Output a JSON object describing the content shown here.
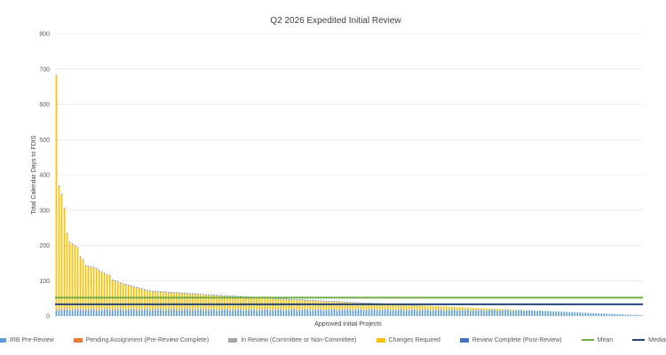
{
  "chart_data": {
    "type": "bar",
    "stacked": true,
    "title": "Q2 2026 Expedited Initial Review",
    "xlabel": "Approved Initial Projects",
    "ylabel": "Total Calendar Days to FDIS",
    "ylim": [
      0,
      800
    ],
    "yticks": [
      "0",
      "100",
      "200",
      "300",
      "400",
      "500",
      "600",
      "700",
      "800"
    ],
    "grid": true,
    "legend_position": "bottom",
    "series": [
      {
        "name": "IRB Pre-Review",
        "color": "#5b9bd5"
      },
      {
        "name": "Pending Assignment (Pre-Review Complete)",
        "color": "#ed7d31"
      },
      {
        "name": "In Review (Committee or Non-Committee)",
        "color": "#a5a5a5"
      },
      {
        "name": "Changes Required",
        "color": "#ffc000"
      },
      {
        "name": "Review Complete (Post-Review)",
        "color": "#4472c4"
      }
    ],
    "reference_lines": [
      {
        "name": "Mean",
        "value": 52,
        "color": "#70ad47"
      },
      {
        "name": "Median",
        "value": 33,
        "color": "#264478"
      }
    ],
    "bar_count": 220,
    "leading_totals": [
      683,
      370,
      345,
      306,
      235,
      210,
      205,
      200,
      195,
      168,
      160,
      143,
      142,
      141,
      138,
      135,
      130,
      125,
      122,
      118,
      116,
      103,
      100,
      97,
      94,
      92,
      90,
      88,
      86,
      84,
      82,
      80,
      78,
      76
    ],
    "trailing_total_range": [
      73,
      2
    ]
  }
}
